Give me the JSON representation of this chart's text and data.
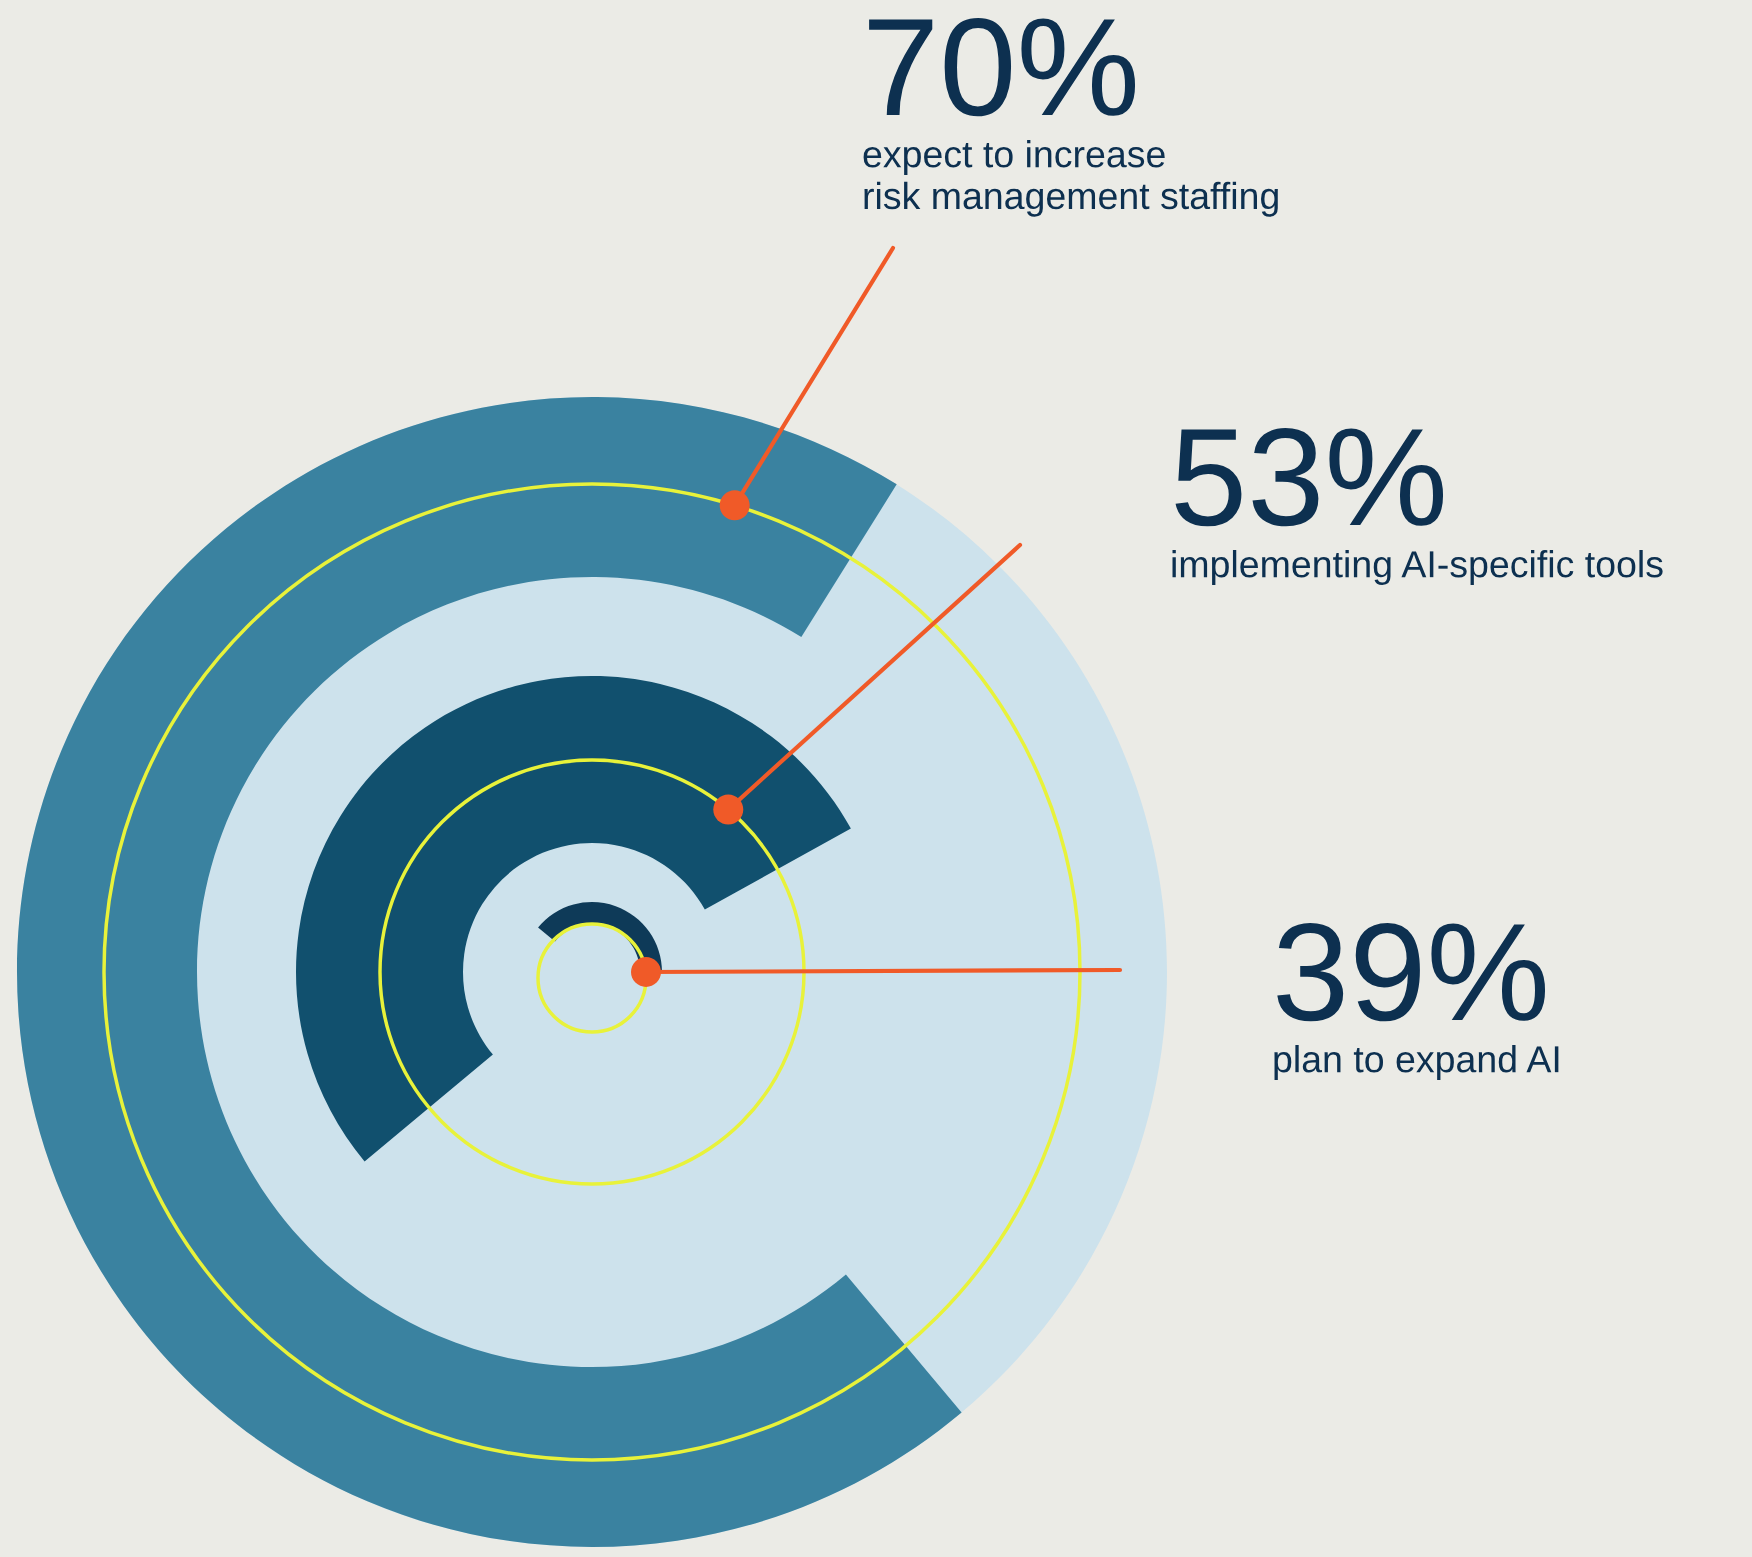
{
  "chart_data": {
    "type": "other",
    "categories": [
      "expect to increase\nrisk management staffing",
      "implementing AI-specific tools",
      "plan to expand AI"
    ],
    "values": [
      70,
      53,
      39
    ],
    "value_labels": [
      "70%",
      "53%",
      "39%"
    ],
    "colors": [
      "#3a82a0",
      "#11506e",
      "#0e3a58"
    ],
    "data_labels": true
  }
}
